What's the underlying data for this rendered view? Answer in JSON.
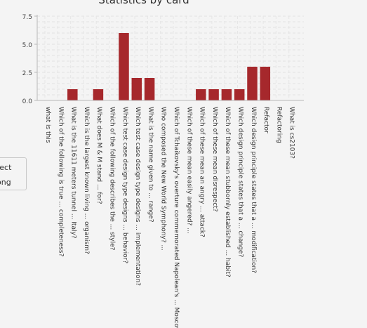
{
  "chart_data": {
    "type": "bar",
    "title": "Statistics by card",
    "xlabel": "",
    "ylabel": "",
    "ylim": [
      0,
      7.5
    ],
    "yticks": [
      "0.0",
      "2.5",
      "5.0",
      "7.5"
    ],
    "grid": true,
    "bar_color": "#a6282c",
    "categories": [
      "what is this",
      "Which of the following is true ... completeness?",
      "What is the 11611 meters tunnel ... Italy?",
      "Which is the largest known living ... organism?",
      "What does M & M stand ... for?",
      "Which of the following describes the ... style?",
      "Which test case design type designs ... behavior?",
      "Which test case design type designs ... implementation?",
      "What is the name given to ... range?",
      "Who composed the New World Symphony? ...",
      "Which of Tchaikovsky's overture commemorated Napolean's ... Moscow?",
      "Which of these mean easily angered? ...",
      "Which of these mean an angry ... attack?",
      "Which of these mean disrespect?",
      "Which of these mean stubbornly established ... habit?",
      "Which design principle states that a ... change?",
      "Which design principle states that a ... modification?",
      "Refactor",
      "Refactoring",
      "What is cs2103?"
    ],
    "values": [
      0,
      1,
      0,
      1,
      0,
      6,
      2,
      2,
      0,
      0,
      0,
      1,
      1,
      1,
      1,
      3,
      3,
      0,
      0,
      0
    ]
  },
  "legend": {
    "items": [
      "rect",
      "ong"
    ]
  }
}
